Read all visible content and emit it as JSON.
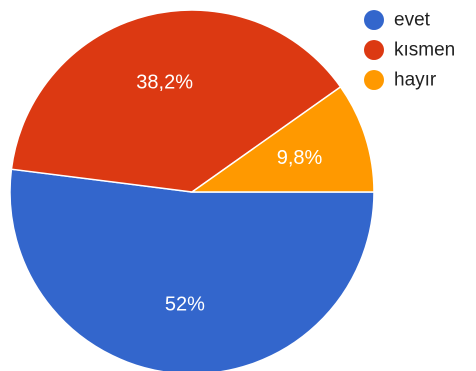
{
  "chart_data": {
    "type": "pie",
    "categories": [
      "evet",
      "kısmen",
      "hayır"
    ],
    "values": [
      52,
      38.2,
      9.8
    ],
    "labels": [
      "52%",
      "38,2%",
      "9,8%"
    ],
    "colors": [
      "#3366cc",
      "#dc3912",
      "#ff9900"
    ],
    "legend": {
      "position": "right",
      "entries": [
        "evet",
        "kısmen",
        "hayır"
      ]
    }
  }
}
